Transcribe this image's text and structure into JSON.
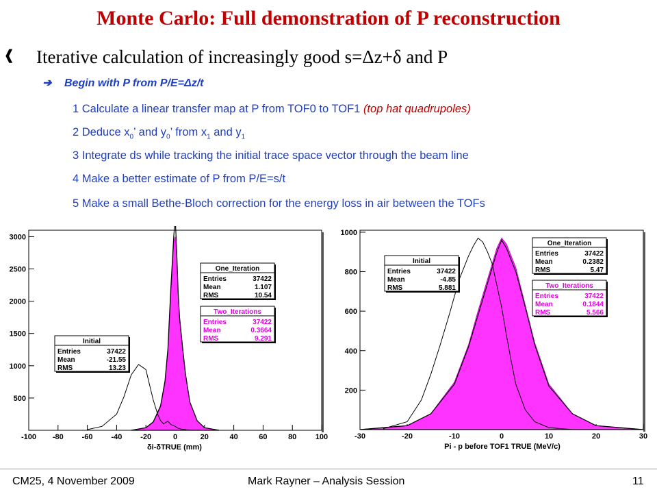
{
  "slide": {
    "title": "Monte Carlo: Full demonstration of P reconstruction",
    "bullet": "Iterative calculation of increasingly good s=Δz+δ and P",
    "sub_bullet": "Begin with P from P/E=Δz/t",
    "steps": {
      "s1": "1 Calculate a linear transfer map at P from TOF0 to TOF1",
      "s1_note": "(top hat quadrupoles)",
      "s2a": "2 Deduce x",
      "s2b": "’ and y",
      "s2c": "’ from  x",
      "s2d": " and y",
      "sub0": "0",
      "sub1": "1",
      "s3": "3 Integrate ds while tracking the initial trace space vector through the beam line",
      "s4": "4 Make a better estimate of P from P/E=s/t",
      "s5": "5 Make a small Bethe-Bloch correction for the energy loss in air between the TOFs"
    }
  },
  "footer": {
    "left": "CM25, 4 November 2009",
    "center": "Mark Rayner – Analysis Session",
    "page": "11"
  },
  "chart_data": [
    {
      "type": "histogram",
      "xlabel": "δi-δTRUE  (mm)",
      "xlim": [
        -100,
        100
      ],
      "ylim": [
        0,
        3100
      ],
      "x_ticks": [
        -100,
        -80,
        -60,
        -40,
        -20,
        0,
        20,
        40,
        60,
        80,
        100
      ],
      "y_ticks": [
        500,
        1000,
        1500,
        2000,
        2500,
        3000
      ],
      "series": [
        {
          "name": "Initial",
          "x": [
            -60,
            -50,
            -40,
            -35,
            -30,
            -25,
            -20,
            -18,
            -15,
            -12,
            -10,
            -8,
            -5,
            -3,
            0,
            2,
            5,
            8,
            10,
            15,
            20
          ],
          "values": [
            10,
            60,
            250,
            520,
            860,
            1020,
            940,
            750,
            470,
            250,
            150,
            100,
            140,
            90,
            60,
            30,
            15,
            8,
            5,
            2,
            0
          ],
          "stats": {
            "Entries": "37422",
            "Mean": "-21.55",
            "RMS": "13.23"
          }
        },
        {
          "name": "One_Iteration",
          "x": [
            -30,
            -20,
            -15,
            -10,
            -7,
            -5,
            -3,
            -1,
            0,
            1,
            2,
            3,
            5,
            7,
            10,
            15,
            20,
            30
          ],
          "values": [
            0,
            40,
            130,
            380,
            760,
            1260,
            2200,
            3000,
            3300,
            2800,
            2150,
            1750,
            1300,
            880,
            440,
            150,
            40,
            0
          ],
          "stats": {
            "Entries": "37422",
            "Mean": "1.107",
            "RMS": "10.54"
          }
        },
        {
          "name": "Two_Iterations",
          "x": [
            -30,
            -20,
            -15,
            -10,
            -7,
            -5,
            -3,
            -1,
            0,
            1,
            2,
            3,
            5,
            7,
            10,
            15,
            20,
            30
          ],
          "values": [
            0,
            40,
            120,
            360,
            720,
            1200,
            2100,
            2900,
            3000,
            2700,
            2100,
            1700,
            1250,
            850,
            430,
            140,
            40,
            0
          ],
          "stats": {
            "Entries": "37422",
            "Mean": "0.3664",
            "RMS": "9.291"
          }
        }
      ]
    },
    {
      "type": "histogram",
      "xlabel": "Pi - p before TOF1 TRUE (MeV/c)",
      "xlim": [
        -30,
        30
      ],
      "ylim": [
        0,
        1010
      ],
      "x_ticks": [
        -30,
        -20,
        -10,
        0,
        10,
        20,
        30
      ],
      "y_ticks": [
        200,
        400,
        600,
        800,
        1000
      ],
      "series": [
        {
          "name": "Initial",
          "x": [
            -25,
            -20,
            -17,
            -15,
            -13,
            -11,
            -9,
            -7,
            -6,
            -5,
            -4,
            -3,
            -2,
            -1,
            0,
            1,
            2,
            3,
            5,
            7,
            10,
            15
          ],
          "values": [
            5,
            40,
            150,
            280,
            430,
            590,
            760,
            880,
            930,
            970,
            950,
            900,
            840,
            730,
            620,
            480,
            350,
            230,
            100,
            40,
            10,
            0
          ],
          "stats": {
            "Entries": "37422",
            "Mean": "-4.85",
            "RMS": "5.881"
          }
        },
        {
          "name": "One_Iteration",
          "x": [
            -30,
            -20,
            -15,
            -10,
            -7,
            -5,
            -3,
            -1,
            0,
            1,
            3,
            5,
            7,
            10,
            15,
            20,
            30
          ],
          "values": [
            0,
            20,
            80,
            230,
            420,
            580,
            740,
            900,
            960,
            920,
            800,
            620,
            430,
            220,
            80,
            20,
            0
          ],
          "stats": {
            "Entries": "37422",
            "Mean": "0.2382",
            "RMS": "5.47"
          }
        },
        {
          "name": "Two_Iterations",
          "x": [
            -30,
            -20,
            -15,
            -10,
            -7,
            -5,
            -3,
            -1,
            0,
            1,
            3,
            5,
            7,
            10,
            15,
            20,
            30
          ],
          "values": [
            0,
            20,
            80,
            240,
            430,
            600,
            760,
            920,
            970,
            940,
            820,
            630,
            440,
            230,
            80,
            20,
            0
          ],
          "stats": {
            "Entries": "37422",
            "Mean": "0.1844",
            "RMS": "5.566"
          }
        }
      ]
    }
  ]
}
